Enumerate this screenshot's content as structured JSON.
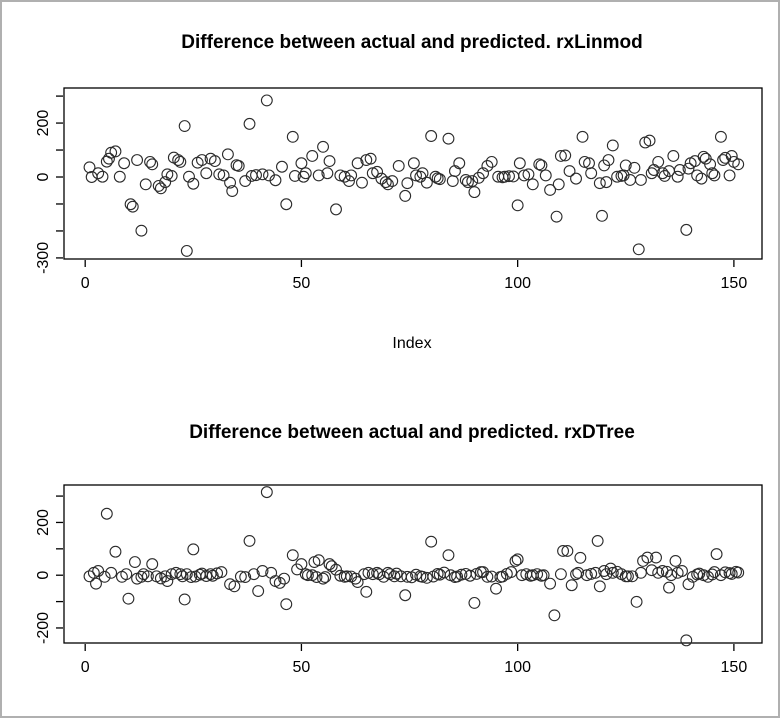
{
  "window": {
    "background": "#ffffff",
    "frame_border_color": "#b0b0b0"
  },
  "chart_data": [
    {
      "type": "scatter",
      "title": "Difference between actual and predicted. rxLinmod",
      "xlabel": "Index",
      "ylabel": "",
      "marker": "open-circle",
      "marker_color": "#2b2b2b",
      "grid": false,
      "legend": null,
      "xlim": [
        -4.9,
        156.5
      ],
      "ylim": [
        -304,
        330
      ],
      "x_ticks": [
        {
          "value": 0,
          "label": "0"
        },
        {
          "value": 50,
          "label": "50"
        },
        {
          "value": 100,
          "label": "100"
        },
        {
          "value": 150,
          "label": "150"
        }
      ],
      "y_ticks": [
        {
          "value": 300,
          "label": ""
        },
        {
          "value": 200,
          "label": "200"
        },
        {
          "value": 100,
          "label": ""
        },
        {
          "value": 0,
          "label": "0"
        },
        {
          "value": -100,
          "label": ""
        },
        {
          "value": -200,
          "label": ""
        },
        {
          "value": -300,
          "label": "-300"
        }
      ],
      "points": [
        [
          1,
          36
        ],
        [
          1.5,
          0
        ],
        [
          3,
          14
        ],
        [
          4,
          1
        ],
        [
          5,
          57
        ],
        [
          5.5,
          68
        ],
        [
          6,
          90
        ],
        [
          7,
          95
        ],
        [
          8,
          1
        ],
        [
          9,
          51
        ],
        [
          10.5,
          -101
        ],
        [
          11,
          -110
        ],
        [
          12,
          63
        ],
        [
          13,
          -199
        ],
        [
          14,
          -27
        ],
        [
          15,
          56
        ],
        [
          15.5,
          47
        ],
        [
          17,
          -33
        ],
        [
          17.5,
          -42
        ],
        [
          18.5,
          -19
        ],
        [
          19,
          10
        ],
        [
          20,
          4
        ],
        [
          20.5,
          72
        ],
        [
          21.5,
          63
        ],
        [
          22,
          56
        ],
        [
          23,
          189
        ],
        [
          23.5,
          -274
        ],
        [
          24,
          1
        ],
        [
          25,
          -25
        ],
        [
          26,
          53
        ],
        [
          27,
          63
        ],
        [
          28,
          14
        ],
        [
          29,
          68
        ],
        [
          30,
          59
        ],
        [
          31,
          10
        ],
        [
          32,
          6
        ],
        [
          33,
          84
        ],
        [
          33.5,
          -21
        ],
        [
          34,
          -52
        ],
        [
          35,
          44
        ],
        [
          35.5,
          41
        ],
        [
          37,
          -15
        ],
        [
          38,
          197
        ],
        [
          38.5,
          4
        ],
        [
          39.5,
          7
        ],
        [
          41,
          10
        ],
        [
          42,
          284
        ],
        [
          42.5,
          6
        ],
        [
          44,
          -12
        ],
        [
          45.5,
          38
        ],
        [
          46.5,
          -101
        ],
        [
          48,
          149
        ],
        [
          48.5,
          4
        ],
        [
          50,
          51
        ],
        [
          50.5,
          1
        ],
        [
          51,
          14
        ],
        [
          52.5,
          78
        ],
        [
          54,
          6
        ],
        [
          55,
          112
        ],
        [
          56,
          14
        ],
        [
          56.5,
          59
        ],
        [
          58,
          -120
        ],
        [
          59,
          6
        ],
        [
          60,
          1
        ],
        [
          61,
          -15
        ],
        [
          61.5,
          6
        ],
        [
          63,
          51
        ],
        [
          64,
          -21
        ],
        [
          65,
          63
        ],
        [
          66,
          68
        ],
        [
          66.5,
          14
        ],
        [
          67.5,
          19
        ],
        [
          68.5,
          -6
        ],
        [
          69.5,
          -19
        ],
        [
          70,
          -27
        ],
        [
          71,
          -15
        ],
        [
          72.5,
          41
        ],
        [
          74,
          -70
        ],
        [
          74.5,
          -23
        ],
        [
          76,
          51
        ],
        [
          76.5,
          6
        ],
        [
          77.5,
          1
        ],
        [
          78,
          14
        ],
        [
          79,
          -21
        ],
        [
          80,
          152
        ],
        [
          81,
          1
        ],
        [
          81.5,
          -5
        ],
        [
          82,
          -8
        ],
        [
          84,
          142
        ],
        [
          85,
          -15
        ],
        [
          85.5,
          22
        ],
        [
          86.5,
          51
        ],
        [
          88,
          -11
        ],
        [
          88.5,
          -19
        ],
        [
          89.5,
          -15
        ],
        [
          90,
          -56
        ],
        [
          91,
          -3
        ],
        [
          92,
          14
        ],
        [
          93,
          41
        ],
        [
          94,
          56
        ],
        [
          95.5,
          1
        ],
        [
          96.5,
          -1
        ],
        [
          97,
          1
        ],
        [
          98,
          3
        ],
        [
          99,
          2
        ],
        [
          100,
          -105
        ],
        [
          100.5,
          51
        ],
        [
          101.5,
          6
        ],
        [
          102.5,
          10
        ],
        [
          103.5,
          -27
        ],
        [
          105,
          47
        ],
        [
          105.5,
          43
        ],
        [
          106.5,
          6
        ],
        [
          107.5,
          -48
        ],
        [
          109,
          -147
        ],
        [
          109.5,
          -27
        ],
        [
          110,
          78
        ],
        [
          111,
          80
        ],
        [
          112,
          22
        ],
        [
          113.5,
          -6
        ],
        [
          115,
          149
        ],
        [
          115.5,
          56
        ],
        [
          116.5,
          51
        ],
        [
          117,
          14
        ],
        [
          119,
          -23
        ],
        [
          119.5,
          -144
        ],
        [
          120,
          43
        ],
        [
          120.5,
          -19
        ],
        [
          121,
          63
        ],
        [
          122,
          117
        ],
        [
          123,
          1
        ],
        [
          124,
          4
        ],
        [
          124.5,
          6
        ],
        [
          125,
          43
        ],
        [
          126,
          -11
        ],
        [
          127,
          34
        ],
        [
          128,
          -268
        ],
        [
          128.5,
          -11
        ],
        [
          129.5,
          128
        ],
        [
          130.5,
          135
        ],
        [
          131,
          14
        ],
        [
          131.5,
          26
        ],
        [
          132.5,
          56
        ],
        [
          133.5,
          14
        ],
        [
          134,
          4
        ],
        [
          135,
          22
        ],
        [
          136,
          78
        ],
        [
          137,
          1
        ],
        [
          137.5,
          26
        ],
        [
          139,
          -196
        ],
        [
          139.5,
          31
        ],
        [
          140,
          51
        ],
        [
          141,
          59
        ],
        [
          141.5,
          6
        ],
        [
          142.5,
          -6
        ],
        [
          143,
          75
        ],
        [
          143.5,
          68
        ],
        [
          144.5,
          47
        ],
        [
          145,
          14
        ],
        [
          145.5,
          6
        ],
        [
          147,
          149
        ],
        [
          147.5,
          63
        ],
        [
          148,
          71
        ],
        [
          149,
          6
        ],
        [
          149.5,
          78
        ],
        [
          150,
          56
        ],
        [
          151,
          47
        ]
      ]
    },
    {
      "type": "scatter",
      "title": "Difference between actual and predicted. rxDTree",
      "xlabel": "",
      "ylabel": "",
      "marker": "open-circle",
      "marker_color": "#2b2b2b",
      "grid": false,
      "legend": null,
      "xlim": [
        -4.9,
        156.5
      ],
      "ylim": [
        -257,
        342
      ],
      "x_ticks": [
        {
          "value": 0,
          "label": "0"
        },
        {
          "value": 50,
          "label": "50"
        },
        {
          "value": 100,
          "label": "100"
        },
        {
          "value": 150,
          "label": "150"
        }
      ],
      "y_ticks": [
        {
          "value": 300,
          "label": ""
        },
        {
          "value": 200,
          "label": "200"
        },
        {
          "value": 100,
          "label": ""
        },
        {
          "value": 0,
          "label": "0"
        },
        {
          "value": -100,
          "label": ""
        },
        {
          "value": -200,
          "label": "-200"
        }
      ],
      "points": [
        [
          1,
          -4
        ],
        [
          2,
          9
        ],
        [
          2.5,
          -32
        ],
        [
          3,
          16
        ],
        [
          4.5,
          -6
        ],
        [
          5,
          233
        ],
        [
          6,
          9
        ],
        [
          7,
          89
        ],
        [
          8.5,
          -6
        ],
        [
          9.5,
          4
        ],
        [
          10,
          -89
        ],
        [
          11.5,
          50
        ],
        [
          12,
          -13
        ],
        [
          13,
          -6
        ],
        [
          13.5,
          4
        ],
        [
          14.5,
          -4
        ],
        [
          15.5,
          42
        ],
        [
          16.5,
          -4
        ],
        [
          17.5,
          -12
        ],
        [
          18.5,
          -4
        ],
        [
          19,
          -22
        ],
        [
          20,
          4
        ],
        [
          21,
          9
        ],
        [
          22,
          4
        ],
        [
          22.5,
          -4
        ],
        [
          23,
          -92
        ],
        [
          23.5,
          4
        ],
        [
          24.5,
          -7
        ],
        [
          25,
          98
        ],
        [
          25.5,
          -5
        ],
        [
          26.5,
          2
        ],
        [
          27,
          6
        ],
        [
          28,
          -3
        ],
        [
          29,
          4
        ],
        [
          29.5,
          -2
        ],
        [
          30.5,
          7
        ],
        [
          31.5,
          12
        ],
        [
          33.5,
          -34
        ],
        [
          34.5,
          -42
        ],
        [
          36,
          -5
        ],
        [
          37,
          -7
        ],
        [
          38,
          130
        ],
        [
          39,
          4
        ],
        [
          40,
          -60
        ],
        [
          41,
          16
        ],
        [
          42,
          315
        ],
        [
          43,
          9
        ],
        [
          44,
          -22
        ],
        [
          45,
          -29
        ],
        [
          46,
          -13
        ],
        [
          46.5,
          -110
        ],
        [
          48,
          76
        ],
        [
          49,
          22
        ],
        [
          50,
          42
        ],
        [
          51,
          4
        ],
        [
          51.5,
          0
        ],
        [
          52.5,
          0
        ],
        [
          53,
          50
        ],
        [
          53.5,
          -7
        ],
        [
          54,
          57
        ],
        [
          55,
          -13
        ],
        [
          55.5,
          -7
        ],
        [
          56.5,
          42
        ],
        [
          57,
          34
        ],
        [
          58,
          21
        ],
        [
          59,
          -2
        ],
        [
          60,
          -6
        ],
        [
          60.5,
          -4
        ],
        [
          61.5,
          -5
        ],
        [
          62.5,
          -13
        ],
        [
          63,
          -26
        ],
        [
          64.5,
          4
        ],
        [
          65,
          -63
        ],
        [
          65.5,
          9
        ],
        [
          66.5,
          4
        ],
        [
          67.5,
          9
        ],
        [
          68,
          4
        ],
        [
          69,
          -6
        ],
        [
          70,
          9
        ],
        [
          70.5,
          4
        ],
        [
          71.5,
          -4
        ],
        [
          72,
          6
        ],
        [
          73,
          -4
        ],
        [
          74,
          -76
        ],
        [
          74.5,
          -6
        ],
        [
          75.5,
          -8
        ],
        [
          76.5,
          2
        ],
        [
          77.5,
          -4
        ],
        [
          78,
          -6
        ],
        [
          79,
          -10
        ],
        [
          80,
          127
        ],
        [
          80.5,
          -5
        ],
        [
          81.5,
          5
        ],
        [
          82,
          2
        ],
        [
          83,
          10
        ],
        [
          84,
          76
        ],
        [
          84.5,
          0
        ],
        [
          85.5,
          -7
        ],
        [
          86,
          -5
        ],
        [
          87,
          2
        ],
        [
          88,
          5
        ],
        [
          89,
          -2
        ],
        [
          90,
          -105
        ],
        [
          90.5,
          5
        ],
        [
          91.5,
          12
        ],
        [
          92,
          12
        ],
        [
          93,
          -6
        ],
        [
          94,
          -5
        ],
        [
          95,
          -51
        ],
        [
          96,
          -7
        ],
        [
          96.5,
          -5
        ],
        [
          97.5,
          5
        ],
        [
          98.5,
          12
        ],
        [
          99.5,
          54
        ],
        [
          100,
          60
        ],
        [
          101,
          0
        ],
        [
          102,
          4
        ],
        [
          103,
          -2
        ],
        [
          103.5,
          0
        ],
        [
          104.5,
          4
        ],
        [
          105.5,
          -2
        ],
        [
          106,
          0
        ],
        [
          107.5,
          -32
        ],
        [
          108.5,
          -152
        ],
        [
          110,
          4
        ],
        [
          110.5,
          92
        ],
        [
          111.5,
          92
        ],
        [
          112.5,
          -38
        ],
        [
          113.5,
          4
        ],
        [
          114,
          9
        ],
        [
          114.5,
          66
        ],
        [
          116,
          0
        ],
        [
          117,
          5
        ],
        [
          118,
          9
        ],
        [
          118.5,
          130
        ],
        [
          119,
          -42
        ],
        [
          120,
          16
        ],
        [
          120.5,
          4
        ],
        [
          121.5,
          25
        ],
        [
          122,
          9
        ],
        [
          123,
          13
        ],
        [
          124,
          4
        ],
        [
          125,
          -4
        ],
        [
          125.5,
          -4
        ],
        [
          126.5,
          -4
        ],
        [
          127.5,
          -101
        ],
        [
          128.5,
          9
        ],
        [
          129,
          54
        ],
        [
          130,
          67
        ],
        [
          131,
          19
        ],
        [
          132,
          67
        ],
        [
          132.5,
          9
        ],
        [
          133.5,
          16
        ],
        [
          134.5,
          13
        ],
        [
          135,
          -47
        ],
        [
          135.5,
          0
        ],
        [
          136.5,
          54
        ],
        [
          137,
          9
        ],
        [
          138,
          16
        ],
        [
          139,
          -247
        ],
        [
          139.5,
          -34
        ],
        [
          140.5,
          -6
        ],
        [
          141.5,
          3
        ],
        [
          142,
          6
        ],
        [
          143,
          0
        ],
        [
          144,
          -6
        ],
        [
          145,
          3
        ],
        [
          145.5,
          12
        ],
        [
          146,
          80
        ],
        [
          147,
          0
        ],
        [
          148,
          11
        ],
        [
          149,
          8
        ],
        [
          149.5,
          5
        ],
        [
          150.5,
          13
        ],
        [
          151,
          10
        ]
      ]
    }
  ]
}
